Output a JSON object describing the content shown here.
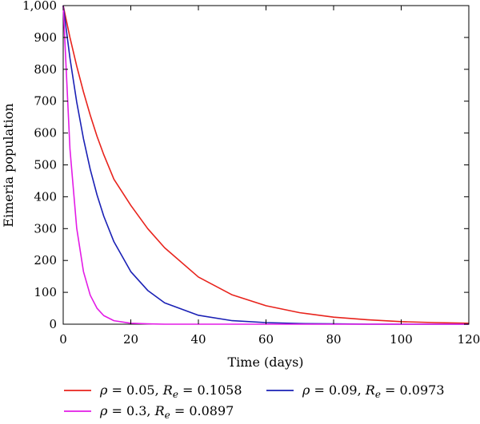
{
  "chart_data": {
    "type": "line",
    "title": "",
    "xlabel": "Time (days)",
    "ylabel": "Eimeria population",
    "xlim": [
      0,
      120
    ],
    "ylim": [
      0,
      1000
    ],
    "xticks": [
      0,
      20,
      40,
      60,
      80,
      100,
      120
    ],
    "xtick_labels": [
      "0",
      "20",
      "40",
      "60",
      "80",
      "100",
      "120"
    ],
    "yticks": [
      0,
      100,
      200,
      300,
      400,
      500,
      600,
      700,
      800,
      900,
      1000
    ],
    "ytick_labels": [
      "0",
      "100",
      "200",
      "300",
      "400",
      "500",
      "600",
      "700",
      "800",
      "900",
      "1,000"
    ],
    "grid": false,
    "legend_position": "bottom",
    "x": [
      0,
      2,
      4,
      6,
      8,
      10,
      12,
      15,
      20,
      25,
      30,
      40,
      50,
      60,
      70,
      80,
      90,
      100,
      110,
      120
    ],
    "series": [
      {
        "name": "ρ = 0.05, R_e = 0.1058",
        "label_parts": {
          "rho": "ρ",
          "rho_value": " = 0.05, ",
          "r": "R",
          "sub": "e",
          "r_value": " = 0.1058"
        },
        "color": "#e8231c",
        "values": [
          1000,
          900,
          810,
          729,
          656,
          590,
          532,
          455,
          373,
          300,
          240,
          148,
          92,
          58,
          36,
          22,
          14,
          8,
          5,
          3
        ]
      },
      {
        "name": "ρ = 0.09, R_e = 0.0973",
        "label_parts": {
          "rho": "ρ",
          "rho_value": " = 0.09, ",
          "r": "R",
          "sub": "e",
          "r_value": " = 0.0973"
        },
        "color": "#1a20b5",
        "values": [
          1000,
          835,
          697,
          582,
          486,
          406,
          339,
          259,
          165,
          106,
          67,
          28,
          11,
          5,
          2,
          1,
          0,
          0,
          0,
          0
        ]
      },
      {
        "name": "ρ = 0.3, R_e = 0.0897",
        "label_parts": {
          "rho": "ρ",
          "rho_value": " = 0.3, ",
          "r": "R",
          "sub": "e",
          "r_value": " = 0.0897"
        },
        "color": "#e31be6",
        "values": [
          1000,
          550,
          301,
          165,
          91,
          50,
          27,
          11,
          3,
          1,
          0,
          0,
          0,
          0,
          0,
          0,
          0,
          0,
          0,
          0
        ]
      }
    ]
  }
}
